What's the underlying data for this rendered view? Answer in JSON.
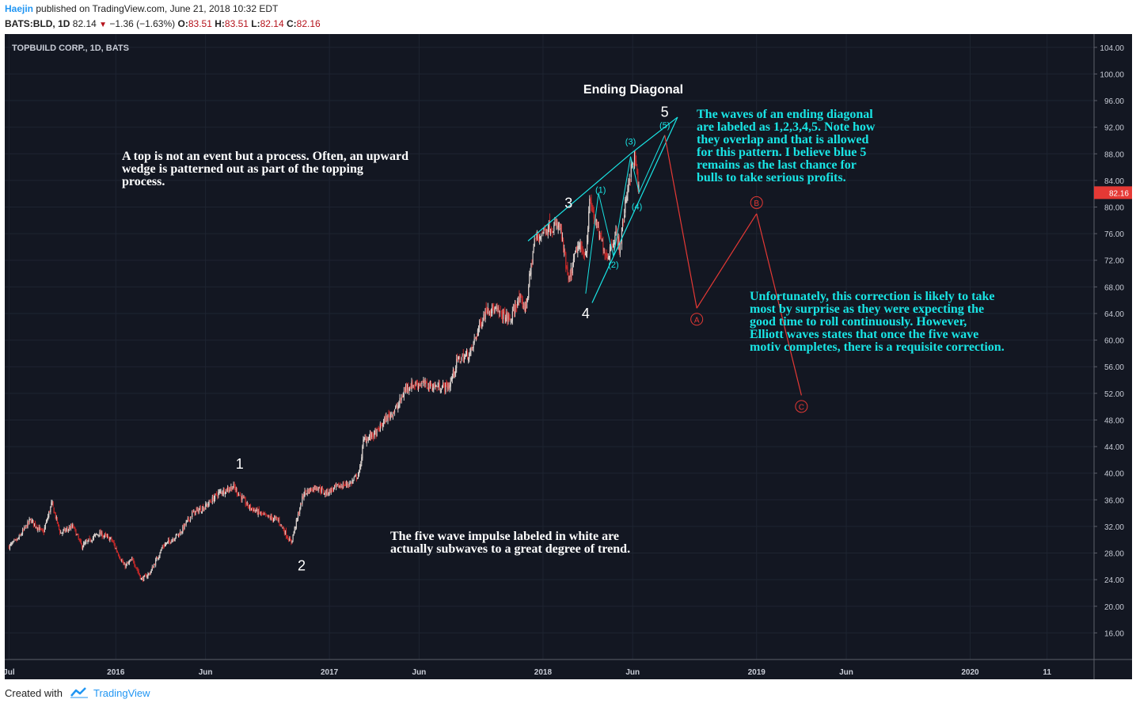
{
  "header": {
    "author": "Haejin",
    "published_text": "published on TradingView.com, June 21, 2018 10:32 EDT",
    "symbol": "BATS:BLD, 1D",
    "last": "82.14",
    "change": "−1.36 (−1.63%)",
    "o_label": "O:",
    "o_value": "83.51",
    "h_label": "H:",
    "h_value": "83.51",
    "l_label": "L:",
    "l_value": "82.14",
    "c_label": "C:",
    "c_value": "82.16"
  },
  "footer": {
    "created_with": "Created with",
    "brand": "TradingView"
  },
  "colors": {
    "background": "#131722",
    "up": "#d9d0cc",
    "down": "#c62828",
    "annotation_cyan": "#19e5e5",
    "correction_red": "#e53935",
    "price_tag": "#e53935"
  },
  "chart_data": {
    "type": "candlestick",
    "title": "TOPBUILD CORP., 1D, BATS",
    "current_price": "82.16",
    "y_ticks": [
      "104.00",
      "100.00",
      "96.00",
      "92.00",
      "88.00",
      "84.00",
      "80.00",
      "76.00",
      "72.00",
      "68.00",
      "64.00",
      "60.00",
      "56.00",
      "52.00",
      "48.00",
      "44.00",
      "40.00",
      "36.00",
      "32.00",
      "28.00",
      "24.00",
      "20.00",
      "16.00"
    ],
    "x_ticks": [
      {
        "label": "Jul",
        "t": 2015.5
      },
      {
        "label": "2016",
        "t": 2016.0
      },
      {
        "label": "Jun",
        "t": 2016.42
      },
      {
        "label": "2017",
        "t": 2017.0
      },
      {
        "label": "Jun",
        "t": 2017.42
      },
      {
        "label": "2018",
        "t": 2018.0
      },
      {
        "label": "Jun",
        "t": 2018.42
      },
      {
        "label": "2019",
        "t": 2019.0
      },
      {
        "label": "Jun",
        "t": 2019.42
      },
      {
        "label": "2020",
        "t": 2020.0
      },
      {
        "label": "11",
        "t": 2020.36
      }
    ],
    "ylim": [
      12,
      106
    ],
    "xlim": [
      2015.48,
      2020.58
    ],
    "price_path": [
      [
        2015.5,
        29
      ],
      [
        2015.54,
        30
      ],
      [
        2015.6,
        33
      ],
      [
        2015.66,
        31
      ],
      [
        2015.7,
        35.5
      ],
      [
        2015.74,
        31
      ],
      [
        2015.8,
        32
      ],
      [
        2015.84,
        29
      ],
      [
        2015.92,
        31
      ],
      [
        2015.98,
        30
      ],
      [
        2016.04,
        26
      ],
      [
        2016.08,
        27
      ],
      [
        2016.12,
        24
      ],
      [
        2016.16,
        25
      ],
      [
        2016.22,
        29
      ],
      [
        2016.3,
        31
      ],
      [
        2016.36,
        34
      ],
      [
        2016.42,
        35
      ],
      [
        2016.48,
        37
      ],
      [
        2016.55,
        38
      ],
      [
        2016.62,
        35
      ],
      [
        2016.7,
        33.5
      ],
      [
        2016.76,
        33
      ],
      [
        2016.82,
        29.5
      ],
      [
        2016.88,
        37
      ],
      [
        2016.94,
        38
      ],
      [
        2016.98,
        37
      ],
      [
        2017.04,
        38
      ],
      [
        2017.1,
        38.5
      ],
      [
        2017.14,
        40
      ],
      [
        2017.16,
        45
      ],
      [
        2017.22,
        46
      ],
      [
        2017.26,
        48
      ],
      [
        2017.32,
        50
      ],
      [
        2017.36,
        53
      ],
      [
        2017.42,
        53.5
      ],
      [
        2017.5,
        53
      ],
      [
        2017.56,
        53
      ],
      [
        2017.6,
        57
      ],
      [
        2017.66,
        58
      ],
      [
        2017.7,
        62
      ],
      [
        2017.74,
        65
      ],
      [
        2017.8,
        64
      ],
      [
        2017.85,
        63
      ],
      [
        2017.88,
        66
      ],
      [
        2017.92,
        65
      ],
      [
        2017.96,
        75
      ],
      [
        2018.02,
        77
      ],
      [
        2018.08,
        77
      ],
      [
        2018.12,
        68.5
      ],
      [
        2018.16,
        74
      ],
      [
        2018.2,
        73
      ],
      [
        2018.22,
        81
      ],
      [
        2018.26,
        76
      ],
      [
        2018.3,
        72.5
      ],
      [
        2018.34,
        76
      ],
      [
        2018.36,
        74
      ],
      [
        2018.4,
        84
      ],
      [
        2018.43,
        87.5
      ],
      [
        2018.45,
        82
      ]
    ],
    "series": [
      {
        "name": "white waves",
        "labels": [
          {
            "text": "1",
            "t": 2016.58,
            "y": 41.4
          },
          {
            "text": "2",
            "t": 2016.87,
            "y": 26.1
          },
          {
            "text": "3",
            "t": 2018.12,
            "y": 80.6
          },
          {
            "text": "4",
            "t": 2018.2,
            "y": 64.0
          },
          {
            "text": "5",
            "t": 2018.57,
            "y": 94.3
          }
        ]
      },
      {
        "name": "blue waves",
        "labels": [
          {
            "text": "(1)",
            "t": 2018.27,
            "y": 82.6
          },
          {
            "text": "(2)",
            "t": 2018.33,
            "y": 71.4
          },
          {
            "text": "(3)",
            "t": 2018.41,
            "y": 89.9
          },
          {
            "text": "(4)",
            "t": 2018.44,
            "y": 80.1
          },
          {
            "text": "(5)",
            "t": 2018.57,
            "y": 92.3
          }
        ]
      },
      {
        "name": "correction",
        "points": [
          {
            "label": "A",
            "t": 2018.72,
            "y": 64.8
          },
          {
            "label": "B",
            "t": 2019.0,
            "y": 79.0
          },
          {
            "label": "C",
            "t": 2019.21,
            "y": 51.7
          }
        ]
      }
    ],
    "annotations": {
      "ending_diagonal": "Ending Diagonal",
      "top_process": [
        "A top is not an event but a process. Often, an upward",
        "wedge is patterned out as part of the topping",
        "process."
      ],
      "diagonal_note": [
        "The waves of an ending diagonal",
        "are labeled as 1,2,3,4,5. Note how",
        "they overlap and that is allowed",
        "for this pattern. I believe blue 5",
        "remains as the last chance for",
        "bulls to take serious profits."
      ],
      "correction_note": [
        "Unfortunately, this correction is likely to take",
        "most by surprise as they were expecting the",
        "good time to roll continuously. However,",
        "Elliott waves states that once the five wave",
        "motiv completes, there is a requisite correction."
      ],
      "impulse_note": [
        "The five wave impulse labeled in white are",
        "actually subwaves to a great degree of trend."
      ]
    }
  }
}
